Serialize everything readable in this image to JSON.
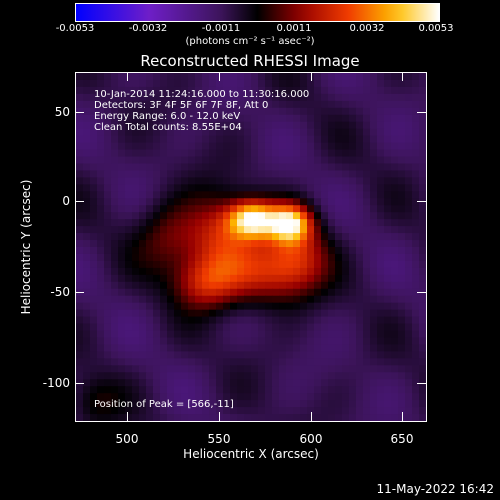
{
  "colorbar": {
    "ticks": [
      "-0.0053",
      "-0.0032",
      "-0.0011",
      "0.0011",
      "0.0032",
      "0.0053"
    ],
    "label": "(photons cm⁻² s⁻¹ asec⁻²)",
    "range": [
      -0.0053,
      0.0053
    ]
  },
  "chart_data": {
    "type": "heatmap",
    "title": "Reconstructed RHESSI Image",
    "xlabel": "Heliocentric X (arcsec)",
    "ylabel": "Heliocentric Y (arcsec)",
    "xlim": [
      470,
      660
    ],
    "ylim": [
      -120,
      70
    ],
    "xticks": [
      "500",
      "550",
      "600",
      "650"
    ],
    "yticks": [
      "50",
      "0",
      "-50",
      "-100"
    ],
    "peak": [
      566,
      -11
    ],
    "sources": [
      {
        "x": 566,
        "y": -10,
        "amp": 1.0,
        "sx": 9,
        "sy": 7
      },
      {
        "x": 586,
        "y": -12,
        "amp": 0.95,
        "sx": 8,
        "sy": 7
      },
      {
        "x": 548,
        "y": -20,
        "amp": 0.55,
        "sx": 14,
        "sy": 16
      },
      {
        "x": 590,
        "y": -30,
        "amp": 0.5,
        "sx": 12,
        "sy": 14
      },
      {
        "x": 540,
        "y": -45,
        "amp": 0.45,
        "sx": 12,
        "sy": 10
      },
      {
        "x": 570,
        "y": -40,
        "amp": 0.45,
        "sx": 16,
        "sy": 12
      },
      {
        "x": 520,
        "y": -20,
        "amp": 0.3,
        "sx": 12,
        "sy": 14
      },
      {
        "x": 480,
        "y": -110,
        "amp": 0.2,
        "sx": 10,
        "sy": 10
      }
    ]
  },
  "annotations": {
    "time": "10-Jan-2014 11:24:16.000 to 11:30:16.000",
    "detectors": "Detectors: 3F 4F 5F 6F 7F 8F, Att 0",
    "energy": "Energy Range: 6.0 - 12.0 keV",
    "clean": "Clean     Total counts: 8.55E+04",
    "peak": "Position of Peak = [566,-11]"
  },
  "timestamp": "11-May-2022 16:42"
}
